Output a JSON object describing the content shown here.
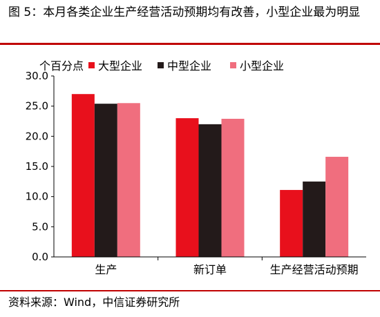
{
  "figure_title": "图 5：本月各类企业生产经营活动预期均有改善，小型企业最为明显",
  "source": "资料来源：Wind，中信证券研究所",
  "chart_data": {
    "type": "bar",
    "title": "",
    "ylabel": "个百分点",
    "xlabel": "",
    "ylim": [
      0,
      30
    ],
    "yticks": [
      "30.0",
      "25.0",
      "20.0",
      "15.0",
      "10.0",
      "5.0",
      "0.0"
    ],
    "grid": false,
    "legend_position": "top",
    "categories": [
      "生产",
      "新订单",
      "生产经营活动预期"
    ],
    "series": [
      {
        "name": "大型企业",
        "color": "#e8101c",
        "values": [
          27.0,
          23.0,
          11.1
        ]
      },
      {
        "name": "中型企业",
        "color": "#231a1a",
        "values": [
          25.4,
          22.0,
          12.5
        ]
      },
      {
        "name": "小型企业",
        "color": "#f06e7e",
        "values": [
          25.5,
          22.9,
          16.6
        ]
      }
    ]
  }
}
